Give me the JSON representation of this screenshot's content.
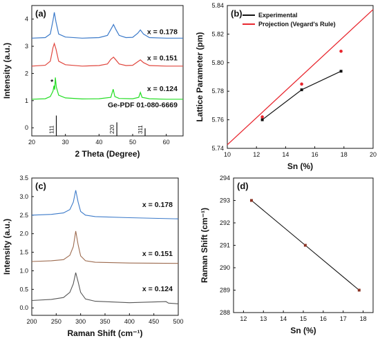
{
  "colors": {
    "blue": "#3a79c9",
    "red": "#e0453c",
    "green": "#22dd22",
    "brown": "#9c6a4e",
    "gray": "#555555",
    "black": "#111111",
    "projection": "#e8262e",
    "marker": "#8a3324"
  },
  "chart_data": [
    {
      "panel": "(a)",
      "type": "line",
      "xlabel": "2 Theta (Degree)",
      "ylabel": "Intensity (a.u.)",
      "xlim": [
        20,
        65
      ],
      "ylim": [
        -0.3,
        4.5
      ],
      "xticks": [
        "20",
        "30",
        "40",
        "50",
        "60"
      ],
      "yticks": [
        "0",
        "1",
        "2",
        "3",
        "4"
      ],
      "series": [
        {
          "name": "x = 0.178",
          "color": "blue",
          "baseline": 3.3,
          "points": [
            [
              20,
              3.3
            ],
            [
              24,
              3.32
            ],
            [
              25.5,
              3.45
            ],
            [
              26.3,
              3.95
            ],
            [
              26.7,
              4.25
            ],
            [
              27.2,
              3.9
            ],
            [
              28,
              3.45
            ],
            [
              30,
              3.34
            ],
            [
              35,
              3.3
            ],
            [
              40,
              3.32
            ],
            [
              42.5,
              3.4
            ],
            [
              43.5,
              3.62
            ],
            [
              44.3,
              3.8
            ],
            [
              45,
              3.62
            ],
            [
              46,
              3.4
            ],
            [
              48,
              3.32
            ],
            [
              50,
              3.33
            ],
            [
              51.5,
              3.48
            ],
            [
              52.3,
              3.6
            ],
            [
              53.2,
              3.45
            ],
            [
              55,
              3.32
            ],
            [
              60,
              3.3
            ],
            [
              65,
              3.3
            ]
          ]
        },
        {
          "name": "x = 0.151",
          "color": "red",
          "baseline": 2.27,
          "points": [
            [
              20,
              2.27
            ],
            [
              24,
              2.3
            ],
            [
              25.5,
              2.45
            ],
            [
              26.3,
              2.95
            ],
            [
              26.7,
              3.1
            ],
            [
              27.2,
              2.9
            ],
            [
              28,
              2.45
            ],
            [
              30,
              2.32
            ],
            [
              35,
              2.27
            ],
            [
              40,
              2.29
            ],
            [
              42.5,
              2.35
            ],
            [
              43.5,
              2.52
            ],
            [
              44.3,
              2.6
            ],
            [
              45,
              2.5
            ],
            [
              46,
              2.35
            ],
            [
              48,
              2.29
            ],
            [
              50,
              2.3
            ],
            [
              51.5,
              2.43
            ],
            [
              52.3,
              2.5
            ],
            [
              53.2,
              2.4
            ],
            [
              55,
              2.29
            ],
            [
              60,
              2.27
            ],
            [
              65,
              2.27
            ]
          ]
        },
        {
          "name": "x = 0.124",
          "color": "green",
          "baseline": 1.05,
          "points": [
            [
              20,
              1.05
            ],
            [
              24,
              1.07
            ],
            [
              25.5,
              1.15
            ],
            [
              26.3,
              1.35
            ],
            [
              26.6,
              1.55
            ],
            [
              26.8,
              1.4
            ],
            [
              27.0,
              1.85
            ],
            [
              27.3,
              1.5
            ],
            [
              28,
              1.2
            ],
            [
              30,
              1.1
            ],
            [
              35,
              1.06
            ],
            [
              40,
              1.07
            ],
            [
              43.5,
              1.12
            ],
            [
              44.2,
              1.42
            ],
            [
              44.7,
              1.15
            ],
            [
              46,
              1.08
            ],
            [
              50,
              1.07
            ],
            [
              51.8,
              1.12
            ],
            [
              52.3,
              1.3
            ],
            [
              52.8,
              1.12
            ],
            [
              55,
              1.07
            ],
            [
              60,
              1.05
            ],
            [
              65,
              1.05
            ]
          ]
        }
      ],
      "reference": {
        "label": "Ge-PDF 01-080-6669",
        "peaks": [
          {
            "x": 27.3,
            "height": 0.75,
            "label": "111"
          },
          {
            "x": 45.3,
            "height": 0.5,
            "label": "220"
          },
          {
            "x": 53.7,
            "height": 0.28,
            "label": "311"
          }
        ]
      },
      "annotation": "*",
      "annotation_at": [
        26.0,
        1.6
      ]
    },
    {
      "panel": "(b)",
      "type": "line",
      "xlabel": "Sn (%)",
      "ylabel": "Lattice Parameter (pm)",
      "xlim": [
        10,
        20
      ],
      "ylim": [
        5.74,
        5.84
      ],
      "xticks": [
        "10",
        "12",
        "14",
        "16",
        "18",
        "20"
      ],
      "yticks": [
        "5.74",
        "5.76",
        "5.78",
        "5.80",
        "5.82",
        "5.84"
      ],
      "legend_position": "top-right",
      "series": [
        {
          "name": "Experimental",
          "color": "black",
          "x": [
            12.4,
            15.1,
            17.8
          ],
          "y": [
            5.76,
            5.781,
            5.794
          ]
        },
        {
          "name": "Projection (Vegard's Rule)",
          "color": "projection",
          "line_x": [
            10,
            20
          ],
          "line_y": [
            5.7425,
            5.8372
          ],
          "x": [
            12.4,
            15.1,
            17.8
          ],
          "y": [
            5.762,
            5.785,
            5.808
          ]
        }
      ]
    },
    {
      "panel": "(c)",
      "type": "line",
      "xlabel": "Raman Shift (cm⁻¹)",
      "ylabel": "Intensity (a.u.)",
      "xlim": [
        200,
        500
      ],
      "ylim": [
        -0.2,
        3.5
      ],
      "xticks": [
        "200",
        "250",
        "300",
        "350",
        "400",
        "450",
        "500"
      ],
      "yticks": [
        "0.0",
        "0.5",
        "1.0",
        "1.5",
        "2.0",
        "2.5",
        "3.0",
        "3.5"
      ],
      "series": [
        {
          "name": "x = 0.178",
          "color": "blue",
          "points": [
            [
              200,
              2.5
            ],
            [
              240,
              2.52
            ],
            [
              265,
              2.56
            ],
            [
              278,
              2.65
            ],
            [
              285,
              2.85
            ],
            [
              290,
              3.17
            ],
            [
              295,
              2.85
            ],
            [
              300,
              2.6
            ],
            [
              310,
              2.5
            ],
            [
              330,
              2.46
            ],
            [
              400,
              2.43
            ],
            [
              500,
              2.4
            ]
          ]
        },
        {
          "name": "x = 0.151",
          "color": "brown",
          "points": [
            [
              200,
              1.25
            ],
            [
              240,
              1.27
            ],
            [
              265,
              1.3
            ],
            [
              278,
              1.42
            ],
            [
              285,
              1.65
            ],
            [
              290,
              2.07
            ],
            [
              295,
              1.7
            ],
            [
              300,
              1.4
            ],
            [
              310,
              1.27
            ],
            [
              330,
              1.23
            ],
            [
              400,
              1.21
            ],
            [
              500,
              1.2
            ]
          ]
        },
        {
          "name": "x = 0.124",
          "color": "gray",
          "points": [
            [
              200,
              0.2
            ],
            [
              240,
              0.23
            ],
            [
              265,
              0.28
            ],
            [
              278,
              0.42
            ],
            [
              285,
              0.65
            ],
            [
              290,
              0.95
            ],
            [
              295,
              0.7
            ],
            [
              300,
              0.42
            ],
            [
              310,
              0.24
            ],
            [
              330,
              0.18
            ],
            [
              400,
              0.14
            ],
            [
              475,
              0.17
            ],
            [
              480,
              0.13
            ],
            [
              500,
              0.11
            ]
          ]
        }
      ]
    },
    {
      "panel": "(d)",
      "type": "line",
      "xlabel": "Sn (%)",
      "ylabel": "Raman Shift (cm⁻¹)",
      "xlim": [
        11.5,
        18.5
      ],
      "ylim": [
        288,
        294
      ],
      "xticks": [
        "12",
        "13",
        "14",
        "15",
        "16",
        "17",
        "18"
      ],
      "yticks": [
        "288",
        "289",
        "290",
        "291",
        "292",
        "293",
        "294"
      ],
      "series": [
        {
          "color": "black",
          "x": [
            12.4,
            15.1,
            17.8
          ],
          "y": [
            293,
            291,
            289
          ]
        }
      ]
    }
  ]
}
